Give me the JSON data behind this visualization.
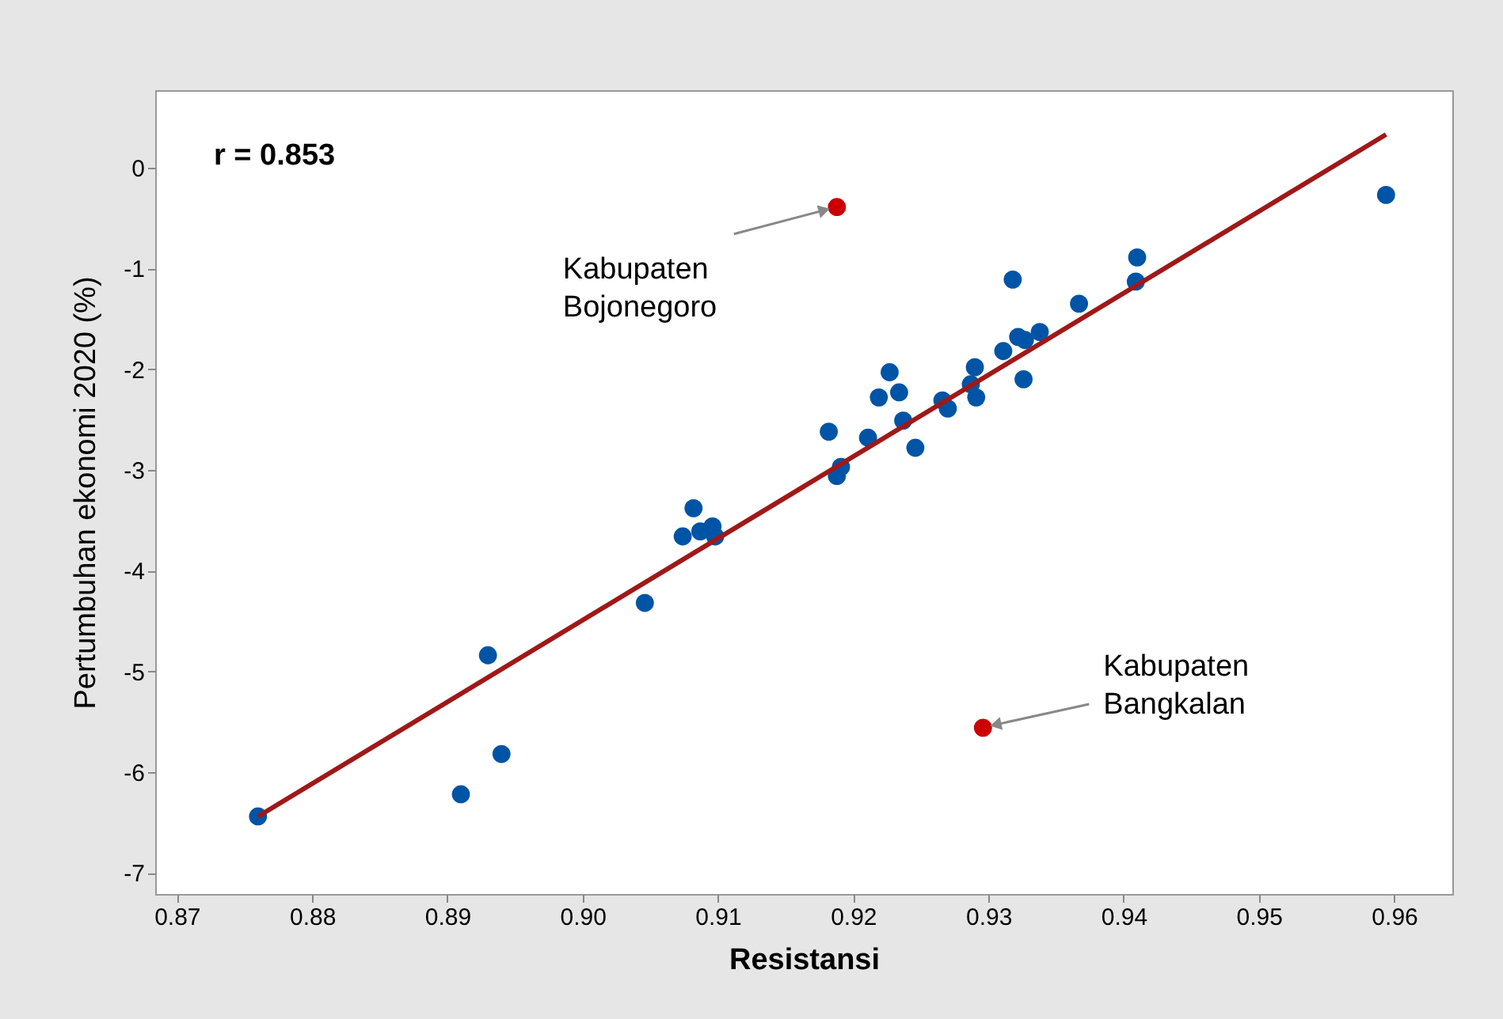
{
  "chart_data": {
    "type": "scatter",
    "xlabel": "Resistansi",
    "ylabel": "Pertumbuhan ekonomi 2020 (%)",
    "xlim": [
      0.8684,
      0.9643
    ],
    "ylim": [
      -7.21,
      0.77
    ],
    "xticks": [
      0.87,
      0.88,
      0.89,
      {
        "value": 0.9,
        "label": "0.90"
      },
      0.91,
      0.92,
      0.93,
      0.94,
      0.95,
      0.96
    ],
    "yticks": [
      -7,
      -6,
      -5,
      -4,
      -3,
      -2,
      -1,
      0
    ],
    "grid": false,
    "annotations": [
      "r = 0.853",
      {
        "text": "Kabupaten\nBojonegoro",
        "x": 0.9188,
        "y": -0.39
      },
      {
        "text": "Kabupaten\nBangkalan",
        "x": 0.9296,
        "y": -5.56
      }
    ],
    "series": [
      {
        "marker": "circle",
        "color": "#0054a6",
        "x": [
          0.876,
          0.891,
          0.894,
          0.893,
          0.9046,
          0.9074,
          0.9082,
          0.9087,
          0.9096,
          0.9098,
          0.9182,
          0.9188,
          0.9191,
          0.9211,
          0.9219,
          0.9227,
          0.9234,
          0.9237,
          0.9246,
          0.9266,
          0.927,
          0.9287,
          0.929,
          0.9291,
          0.9311,
          0.9318,
          0.9322,
          0.9327,
          0.9326,
          0.9338,
          0.9367,
          0.9409,
          0.941,
          0.9594
        ],
        "values": [
          -6.44,
          -6.22,
          -5.82,
          -4.84,
          -4.32,
          -3.66,
          -3.38,
          -3.61,
          -3.56,
          -3.66,
          -2.62,
          -3.06,
          -2.97,
          -2.68,
          -2.28,
          -2.03,
          -2.23,
          -2.51,
          -2.78,
          -2.31,
          -2.39,
          -2.15,
          -1.98,
          -2.28,
          -1.82,
          -1.11,
          -1.68,
          -1.71,
          -2.1,
          -1.63,
          -1.35,
          -1.13,
          -0.89,
          -0.27
        ]
      },
      {
        "marker": "circle",
        "color": "#cc0000",
        "x": [
          0.9188,
          0.9296
        ],
        "values": [
          -0.39,
          -5.56
        ]
      },
      {
        "type": "line",
        "color": "#a01818",
        "x": [
          0.876,
          0.9594
        ],
        "values": [
          -6.44,
          0.33
        ]
      }
    ]
  }
}
